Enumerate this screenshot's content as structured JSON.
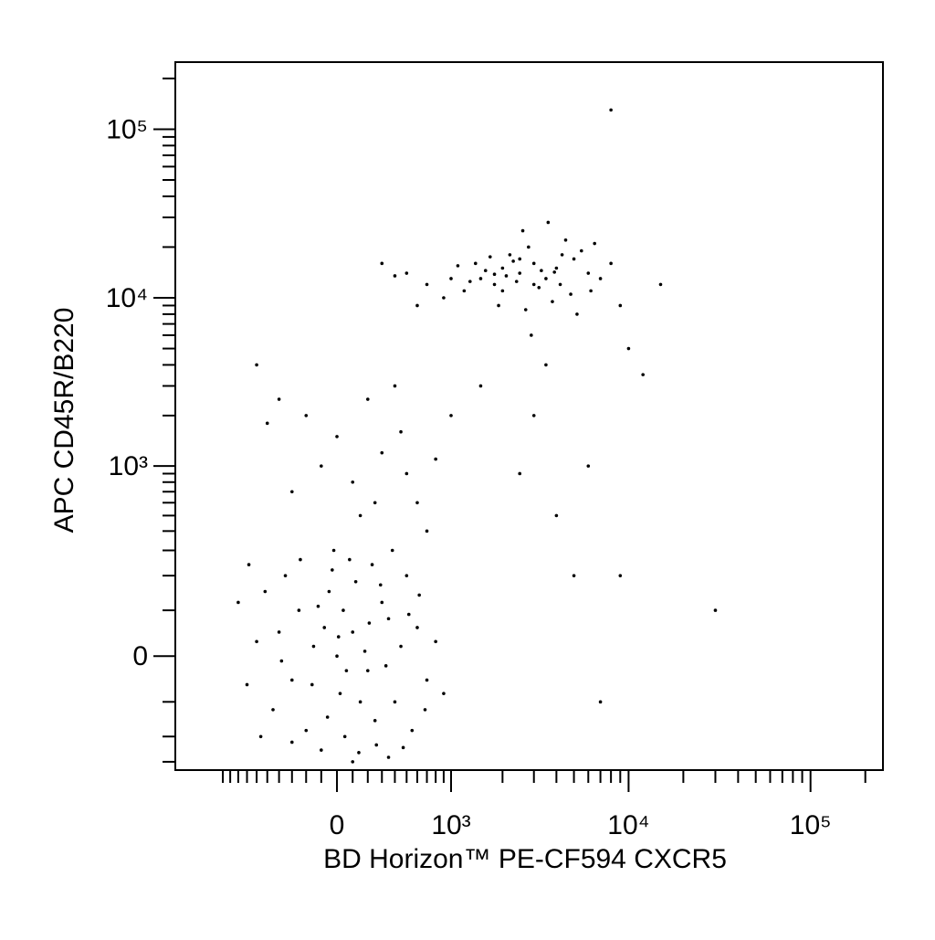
{
  "chart_data": {
    "type": "scatter",
    "xlabel": "BD Horizon™ PE-CF594 CXCR5",
    "ylabel": "APC CD45R/B220",
    "xscale": "biexponential",
    "yscale": "biexponential",
    "color": "#000000",
    "xlim": [
      -1900,
      250000
    ],
    "ylim": [
      -340,
      250000
    ],
    "xticks": [
      {
        "value": 0,
        "label": "0"
      },
      {
        "value": 1000,
        "label": "10³"
      },
      {
        "value": 10000,
        "label": "10⁴"
      },
      {
        "value": 100000,
        "label": "10⁵"
      }
    ],
    "yticks": [
      {
        "value": 0,
        "label": "0"
      },
      {
        "value": 1000,
        "label": "10³"
      },
      {
        "value": 10000,
        "label": "10⁴"
      },
      {
        "value": 100000,
        "label": "10⁵"
      }
    ],
    "xminorticks": [
      -1000,
      -900,
      -800,
      -700,
      -600,
      -500,
      -400,
      -300,
      -200,
      -100,
      100,
      200,
      300,
      400,
      500,
      600,
      700,
      800,
      900,
      2000,
      3000,
      4000,
      5000,
      6000,
      7000,
      8000,
      9000,
      20000,
      30000,
      40000,
      50000,
      60000,
      70000,
      80000,
      90000,
      200000
    ],
    "yminorticks": [
      -300,
      -200,
      -100,
      100,
      200,
      300,
      400,
      500,
      600,
      700,
      800,
      900,
      2000,
      3000,
      4000,
      5000,
      6000,
      7000,
      8000,
      9000,
      20000,
      30000,
      40000,
      50000,
      60000,
      70000,
      80000,
      90000,
      200000
    ],
    "x": [
      -300,
      -150,
      0,
      100,
      200,
      350,
      -450,
      -50,
      50,
      400,
      600,
      -250,
      120,
      250,
      -600,
      -100,
      500,
      300,
      -350,
      20,
      180,
      -200,
      700,
      450,
      -700,
      80,
      -20,
      260,
      -400,
      150,
      330,
      -80,
      550,
      -520,
      40,
      -160,
      230,
      620,
      -300,
      100,
      800,
      -800,
      380,
      -60,
      10,
      470,
      -240,
      210,
      -120,
      680,
      60,
      -380,
      290,
      -560,
      140,
      520,
      -30,
      350,
      -680,
      900,
      1500,
      2000,
      2500,
      3000,
      1800,
      2200,
      3500,
      4000,
      1200,
      2800,
      5000,
      1600,
      2400,
      3200,
      4500,
      6000,
      1000,
      700,
      500,
      1900,
      2600,
      3800,
      4200,
      5500,
      7000,
      1400,
      2100,
      3300,
      2700,
      1700,
      4800,
      6500,
      900,
      3600,
      2300,
      1300,
      400,
      8000,
      5200,
      3000,
      2000,
      2500,
      1100,
      4300,
      6200,
      1800,
      3900,
      2900,
      10000,
      12000,
      9000,
      15000,
      600,
      300,
      -100,
      100,
      300,
      500,
      0,
      -300,
      200,
      600,
      400,
      800,
      -500,
      150,
      1000,
      700,
      -200,
      250,
      450,
      2500,
      3000,
      4000,
      5000,
      6000,
      9000,
      3500,
      1500,
      -600,
      -400,
      30000,
      7000,
      8000
    ],
    "values": [
      -50,
      20,
      0,
      50,
      -30,
      80,
      -120,
      150,
      -200,
      -100,
      60,
      100,
      180,
      -150,
      30,
      -250,
      200,
      120,
      200,
      -80,
      10,
      -180,
      -50,
      20,
      -60,
      260,
      300,
      -230,
      50,
      -100,
      -20,
      60,
      -180,
      150,
      100,
      -60,
      240,
      140,
      -220,
      -300,
      30,
      120,
      300,
      -140,
      40,
      -240,
      260,
      70,
      110,
      -120,
      -30,
      -10,
      170,
      -200,
      -260,
      90,
      220,
      -280,
      240,
      -80,
      13000,
      15000,
      14000,
      16000,
      12000,
      18000,
      13000,
      15000,
      11000,
      20000,
      17000,
      14500,
      12500,
      11500,
      22000,
      14000,
      13000,
      12000,
      14000,
      9000,
      25000,
      9500,
      12000,
      19000,
      13000,
      16000,
      13500,
      14500,
      8500,
      17500,
      10500,
      21000,
      10000,
      28000,
      16500,
      12500,
      13500,
      16000,
      8000,
      12000,
      11000,
      17000,
      15500,
      18000,
      11000,
      13800,
      14200,
      6000,
      5000,
      3500,
      9000,
      12000,
      9000,
      16000,
      1000,
      800,
      1200,
      900,
      1500,
      700,
      2500,
      600,
      3000,
      1100,
      1800,
      500,
      2000,
      400,
      2000,
      600,
      1600,
      900,
      2000,
      500,
      200,
      1000,
      200,
      4000,
      3000,
      4000,
      2500,
      100,
      -100,
      130000
    ]
  }
}
